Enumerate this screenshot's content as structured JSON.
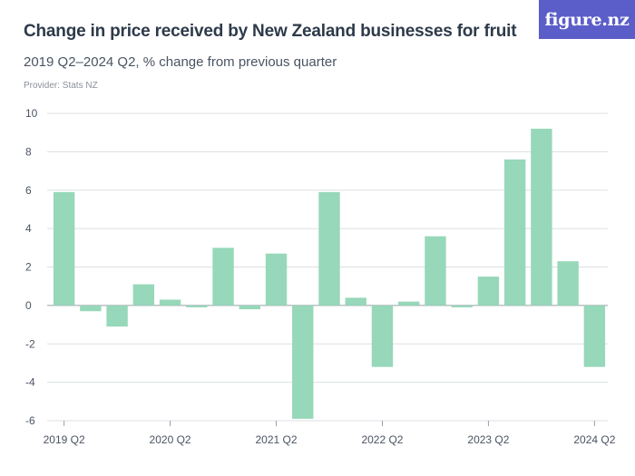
{
  "header": {
    "title": "Change in price received by New Zealand businesses for fruit",
    "subtitle": "2019 Q2–2024 Q2, % change from previous quarter",
    "provider": "Provider: Stats NZ",
    "logo_text": "figure.nz"
  },
  "chart_data": {
    "type": "bar",
    "title": "Change in price received by New Zealand businesses for fruit",
    "subtitle": "2019 Q2–2024 Q2, % change from previous quarter",
    "xlabel": "",
    "ylabel": "",
    "ylim": [
      -6,
      10
    ],
    "yticks": [
      10,
      8,
      6,
      4,
      2,
      0,
      -2,
      -4,
      -6
    ],
    "ytick_labels": [
      "10",
      "8",
      "6",
      "4",
      "2",
      "0",
      "-2",
      "-4",
      "-6"
    ],
    "grid": true,
    "categories": [
      "2019 Q2",
      "2019 Q3",
      "2019 Q4",
      "2020 Q1",
      "2020 Q2",
      "2020 Q3",
      "2020 Q4",
      "2021 Q1",
      "2021 Q2",
      "2021 Q3",
      "2021 Q4",
      "2022 Q1",
      "2022 Q2",
      "2022 Q3",
      "2022 Q4",
      "2023 Q1",
      "2023 Q2",
      "2023 Q3",
      "2023 Q4",
      "2024 Q1",
      "2024 Q2"
    ],
    "values": [
      5.9,
      -0.3,
      -1.1,
      1.1,
      0.3,
      -0.1,
      3.0,
      -0.2,
      2.7,
      -5.9,
      5.9,
      0.4,
      -3.2,
      0.2,
      3.6,
      -0.1,
      1.5,
      7.6,
      9.2,
      2.3,
      -3.2
    ],
    "x_tick_labels": [
      {
        "index": 0,
        "label": "2019 Q2"
      },
      {
        "index": 4,
        "label": "2020 Q2"
      },
      {
        "index": 8,
        "label": "2021 Q2"
      },
      {
        "index": 12,
        "label": "2022 Q2"
      },
      {
        "index": 16,
        "label": "2023 Q2"
      },
      {
        "index": 20,
        "label": "2024 Q2"
      }
    ],
    "bar_color": "#96d8b9"
  }
}
